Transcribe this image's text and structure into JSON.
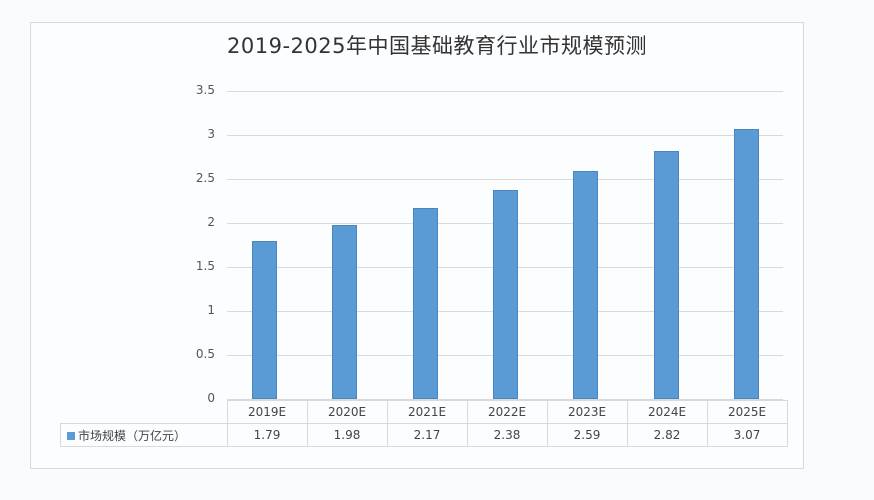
{
  "chart_data": {
    "type": "bar",
    "title": "2019-2025年中国基础教育行业市规模预测",
    "categories": [
      "2019E",
      "2020E",
      "2021E",
      "2022E",
      "2023E",
      "2024E",
      "2025E"
    ],
    "series": [
      {
        "name": "市场规模（万亿元）",
        "values": [
          1.79,
          1.98,
          2.17,
          2.38,
          2.59,
          2.82,
          3.07
        ],
        "color": "#5b9bd5"
      }
    ],
    "xlabel": "",
    "ylabel": "",
    "ylim": [
      0,
      3.5
    ],
    "yticks": [
      "0",
      "0.5",
      "1",
      "1.5",
      "2",
      "2.5",
      "3",
      "3.5"
    ],
    "grid": true,
    "legend_position": "data-table",
    "data_table": true
  }
}
